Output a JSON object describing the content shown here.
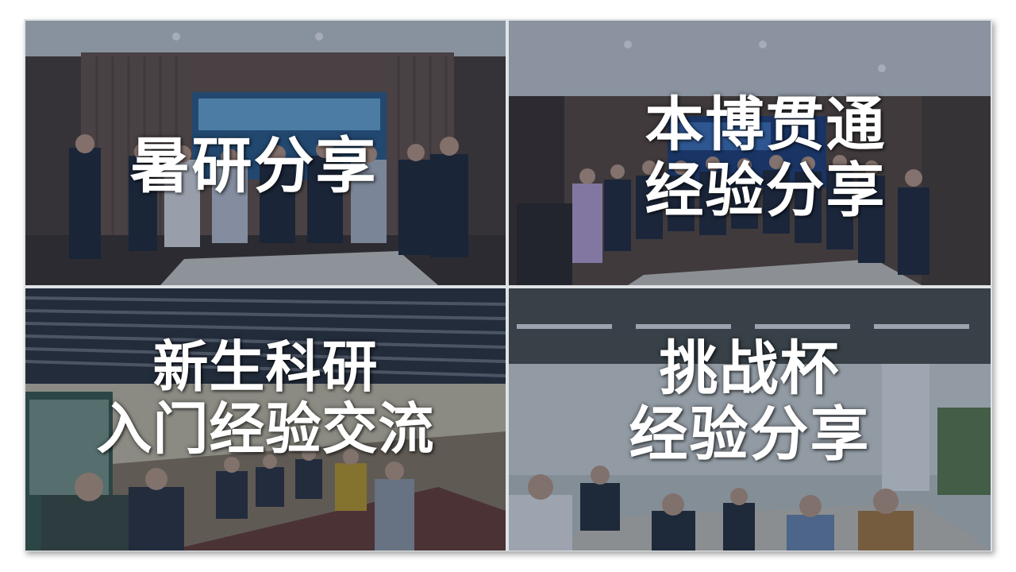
{
  "panels": [
    {
      "lines": [
        "暑研分享"
      ]
    },
    {
      "lines": [
        "本博贯通",
        "经验分享"
      ]
    },
    {
      "lines": [
        "新生科研",
        "入门经验交流"
      ]
    },
    {
      "lines": [
        "挑战杯",
        "经验分享"
      ]
    }
  ],
  "colors": {
    "overlay_tint": "#142846",
    "caption": "#ffffff",
    "frame_border": "#dfe3e6"
  }
}
